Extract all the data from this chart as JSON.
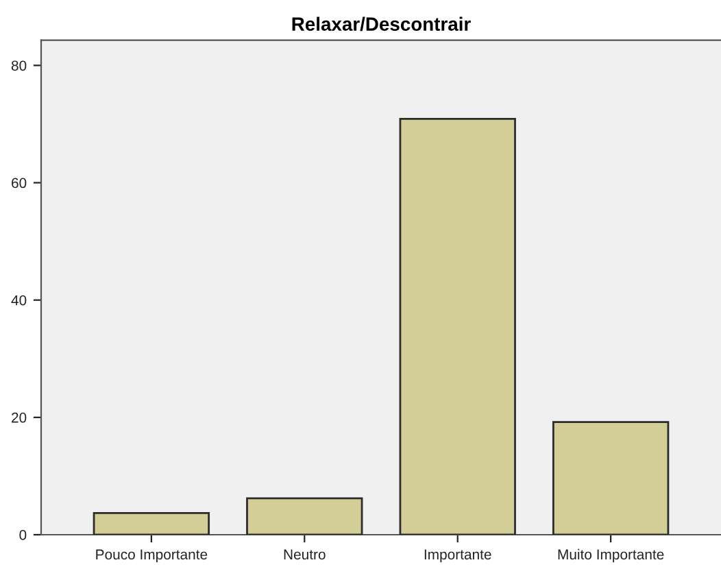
{
  "chart_data": {
    "type": "bar",
    "title": "Relaxar/Descontrair",
    "categories": [
      "Pouco Importante",
      "Neutro",
      "Importante",
      "Muito Importante"
    ],
    "values": [
      3.7,
      6.2,
      70.9,
      19.2
    ],
    "color": "#d3ce97",
    "ylim": [
      0,
      84.3
    ],
    "yticks": [
      0,
      20,
      40,
      60,
      80
    ],
    "grid": false
  }
}
